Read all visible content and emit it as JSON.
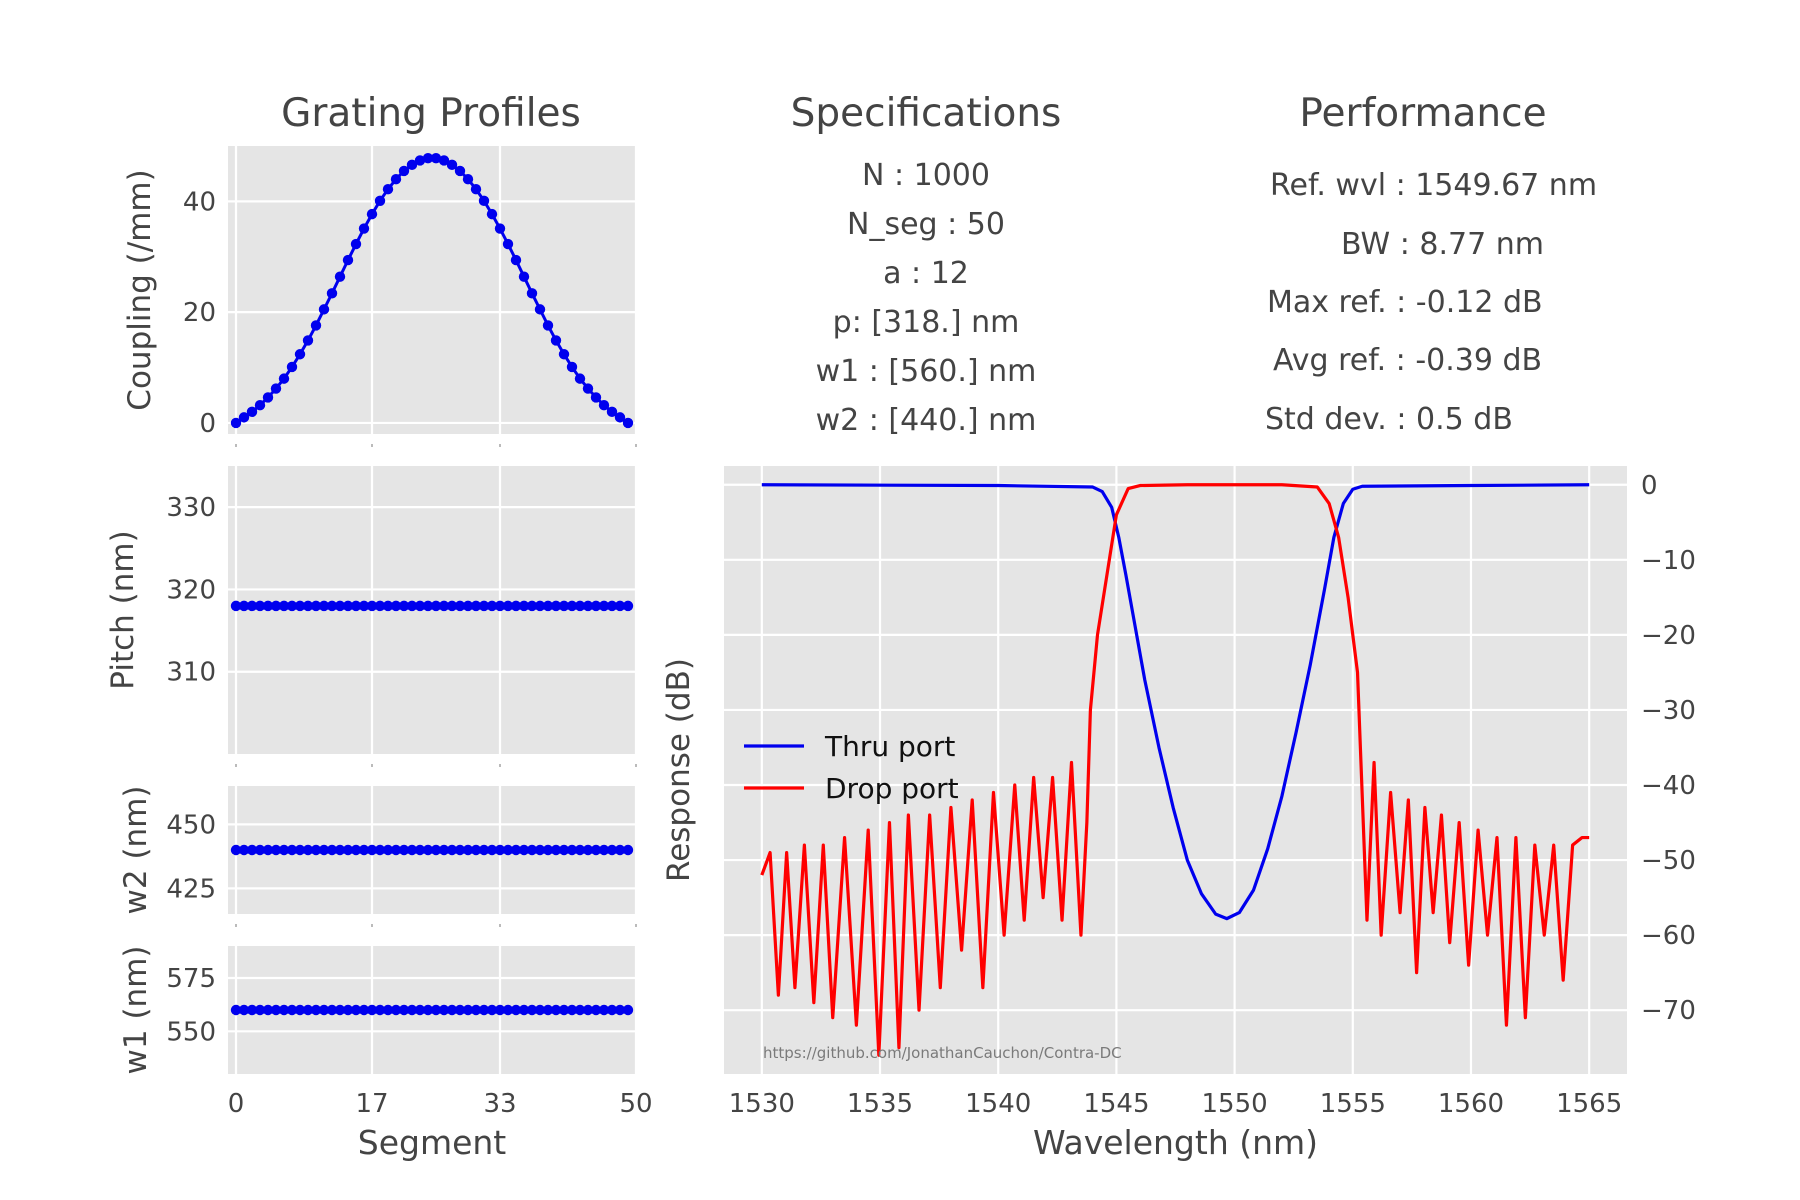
{
  "header": {
    "profiles_title": "Grating Profiles",
    "specs_title": "Specifications",
    "perf_title": "Performance"
  },
  "specifications": [
    "N : 1000",
    "N_seg : 50",
    "a : 12",
    "p: [318.] nm",
    "w1 : [560.] nm",
    "w2 : [440.] nm"
  ],
  "performance": [
    "Ref. wvl : 1549.67 nm",
    "BW : 8.77 nm",
    "Max ref. : -0.12 dB",
    "Avg ref. : -0.39 dB",
    "Std dev. : 0.5 dB"
  ],
  "watermark": "https://github.com/JonathanCauchon/Contra-DC",
  "colors": {
    "panel_bg": "#e5e5e5",
    "grid": "#ffffff",
    "thru": "#0000ee",
    "drop": "#ff0000",
    "marker": "#0000ee"
  },
  "chart_data": [
    {
      "type": "scatter",
      "id": "coupling",
      "xlabel": "",
      "ylabel": "Coupling (/mm)",
      "xlim": [
        -1,
        50
      ],
      "ylim": [
        -2,
        50
      ],
      "xticks": [
        0,
        17,
        33,
        50
      ],
      "yticks": [
        0,
        20,
        40
      ],
      "x": [
        0,
        1,
        2,
        3,
        4,
        5,
        6,
        7,
        8,
        9,
        10,
        11,
        12,
        13,
        14,
        15,
        16,
        17,
        18,
        19,
        20,
        21,
        22,
        23,
        24,
        25,
        26,
        27,
        28,
        29,
        30,
        31,
        32,
        33,
        34,
        35,
        36,
        37,
        38,
        39,
        40,
        41,
        42,
        43,
        44,
        45,
        46,
        47,
        48,
        49
      ],
      "y": [
        0,
        1.0,
        2.0,
        3.2,
        4.6,
        6.2,
        8.0,
        10.1,
        12.4,
        14.9,
        17.6,
        20.5,
        23.4,
        26.4,
        29.4,
        32.3,
        35.1,
        37.7,
        40.1,
        42.2,
        44.0,
        45.5,
        46.6,
        47.4,
        47.8,
        47.8,
        47.4,
        46.6,
        45.5,
        44.0,
        42.2,
        40.1,
        37.7,
        35.1,
        32.3,
        29.4,
        26.4,
        23.4,
        20.5,
        17.6,
        14.9,
        12.4,
        10.1,
        8.0,
        6.2,
        4.6,
        3.2,
        2.0,
        1.0,
        0
      ]
    },
    {
      "type": "scatter",
      "id": "pitch",
      "xlabel": "",
      "ylabel": "Pitch (nm)",
      "xlim": [
        -1,
        50
      ],
      "ylim": [
        300,
        335
      ],
      "xticks": [
        0,
        17,
        33,
        50
      ],
      "yticks": [
        310,
        320,
        330
      ],
      "constant_y": 318,
      "n_points": 50
    },
    {
      "type": "scatter",
      "id": "w2",
      "xlabel": "",
      "ylabel": "w2 (nm)",
      "xlim": [
        -1,
        50
      ],
      "ylim": [
        415,
        465
      ],
      "xticks": [
        0,
        17,
        33,
        50
      ],
      "yticks": [
        425,
        450
      ],
      "constant_y": 440,
      "n_points": 50
    },
    {
      "type": "scatter",
      "id": "w1",
      "xlabel": "Segment",
      "ylabel": "w1 (nm)",
      "xlim": [
        -1,
        50
      ],
      "ylim": [
        530,
        590
      ],
      "xticks": [
        0,
        17,
        33,
        50
      ],
      "yticks": [
        550,
        575
      ],
      "constant_y": 560,
      "n_points": 50
    },
    {
      "type": "line",
      "id": "response",
      "xlabel": "Wavelength (nm)",
      "ylabel": "Response (dB)",
      "xlim": [
        1528.4,
        1566.6
      ],
      "ylim": [
        -78.5,
        2.5
      ],
      "xticks": [
        1530,
        1535,
        1540,
        1545,
        1550,
        1555,
        1560,
        1565
      ],
      "yticks": [
        0,
        -10,
        -20,
        -30,
        -40,
        -50,
        -60,
        -70
      ],
      "yaxis_side": "right",
      "grid": true,
      "legend": "center-left",
      "series": [
        {
          "name": "Thru port",
          "color": "#0000ee",
          "x": [
            1530,
            1540,
            1544,
            1544.4,
            1544.8,
            1545.1,
            1545.4,
            1545.8,
            1546.2,
            1546.8,
            1547.4,
            1548.0,
            1548.6,
            1549.2,
            1549.67,
            1550.2,
            1550.8,
            1551.4,
            1552.0,
            1552.6,
            1553.2,
            1553.8,
            1554.2,
            1554.6,
            1555.0,
            1555.4,
            1560,
            1565
          ],
          "y": [
            0,
            -0.1,
            -0.3,
            -0.9,
            -3,
            -7,
            -12,
            -19,
            -26,
            -35,
            -43,
            -50,
            -54.5,
            -57.2,
            -57.8,
            -57.0,
            -54.0,
            -48.5,
            -41.5,
            -33,
            -24,
            -14,
            -7,
            -2.5,
            -0.6,
            -0.2,
            -0.1,
            0
          ]
        },
        {
          "name": "Drop port",
          "color": "#ff0000",
          "x": [
            1530,
            1530.35,
            1530.7,
            1531.05,
            1531.4,
            1531.8,
            1532.2,
            1532.6,
            1533.0,
            1533.5,
            1534.0,
            1534.5,
            1534.95,
            1535.4,
            1535.8,
            1536.2,
            1536.65,
            1537.1,
            1537.55,
            1538.0,
            1538.45,
            1538.9,
            1539.35,
            1539.8,
            1540.25,
            1540.7,
            1541.1,
            1541.5,
            1541.9,
            1542.3,
            1542.7,
            1543.1,
            1543.5,
            1543.75,
            1543.9,
            1544.2,
            1544.6,
            1545.0,
            1545.5,
            1546,
            1548,
            1550,
            1552,
            1553.5,
            1554.0,
            1554.4,
            1554.8,
            1555.2,
            1555.6,
            1555.9,
            1556.2,
            1556.6,
            1557.0,
            1557.35,
            1557.7,
            1558.05,
            1558.4,
            1558.75,
            1559.1,
            1559.5,
            1559.9,
            1560.3,
            1560.7,
            1561.1,
            1561.5,
            1561.9,
            1562.3,
            1562.7,
            1563.1,
            1563.5,
            1563.9,
            1564.3,
            1564.7,
            1565
          ],
          "y": [
            -52,
            -49,
            -68,
            -49,
            -67,
            -48,
            -69,
            -48,
            -71,
            -47,
            -72,
            -46,
            -76,
            -45,
            -75,
            -44,
            -70,
            -44,
            -67,
            -43,
            -62,
            -42,
            -67,
            -41,
            -60,
            -40,
            -58,
            -39,
            -55,
            -39,
            -58,
            -37,
            -60,
            -45,
            -30,
            -20,
            -12,
            -4,
            -0.5,
            -0.1,
            0,
            0,
            0,
            -0.3,
            -2.5,
            -7,
            -15,
            -25,
            -58,
            -37,
            -60,
            -41,
            -57,
            -42,
            -65,
            -43,
            -57,
            -44,
            -61,
            -45,
            -64,
            -46,
            -60,
            -47,
            -72,
            -47,
            -71,
            -48,
            -60,
            -48,
            -66,
            -48,
            -47,
            -47
          ]
        }
      ]
    }
  ]
}
